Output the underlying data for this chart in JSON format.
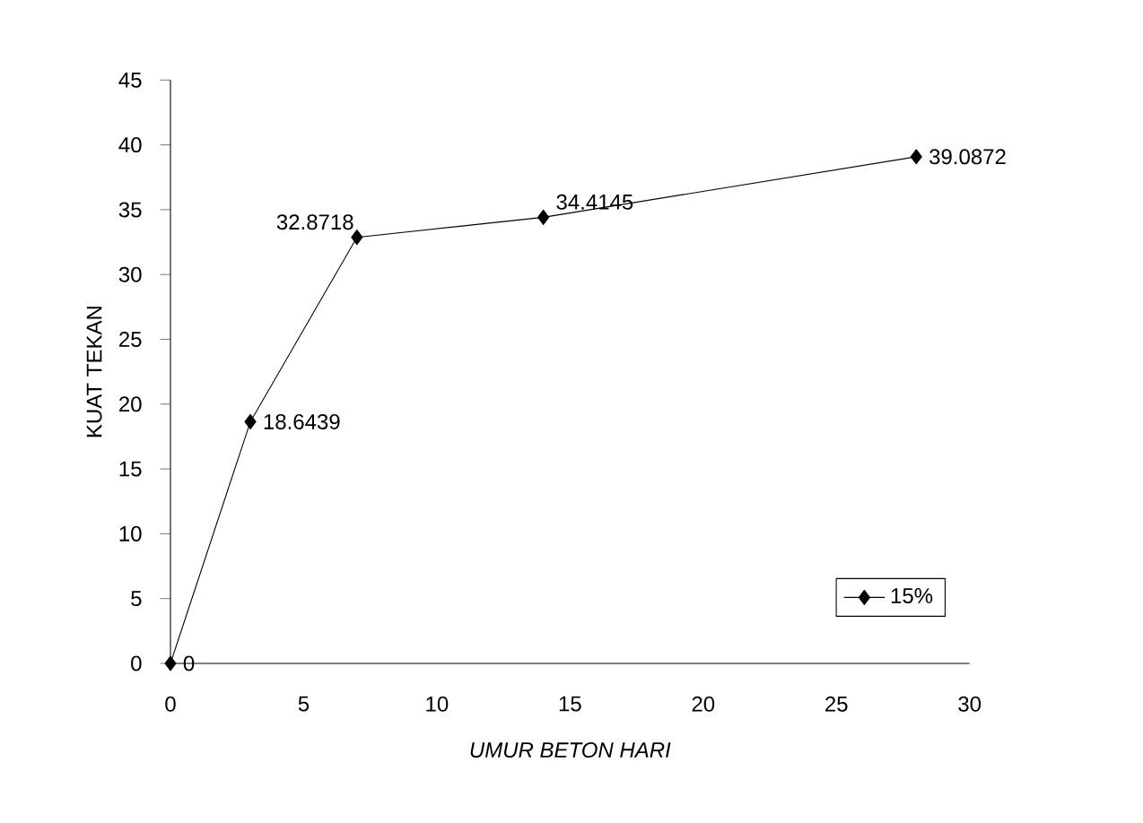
{
  "chart_data": {
    "type": "line",
    "xlabel": "UMUR BETON HARI",
    "ylabel": "KUAT TEKAN",
    "x": [
      0,
      3,
      7,
      14,
      28
    ],
    "series": [
      {
        "name": "15%",
        "color": "#000000",
        "values": [
          0,
          18.6439,
          32.8718,
          34.4145,
          39.0872
        ],
        "value_labels": [
          "0",
          "18.6439",
          "32.8718",
          "34.4145",
          "39.0872"
        ]
      }
    ],
    "xlim": [
      0,
      30
    ],
    "xticks": [
      0,
      5,
      10,
      15,
      20,
      25,
      30
    ],
    "ylim": [
      0,
      45
    ],
    "yticks": [
      0,
      5,
      10,
      15,
      20,
      25,
      30,
      35,
      40,
      45
    ],
    "grid": false,
    "legend": "bottom right",
    "marker": "diamond",
    "line_style": "solid"
  }
}
